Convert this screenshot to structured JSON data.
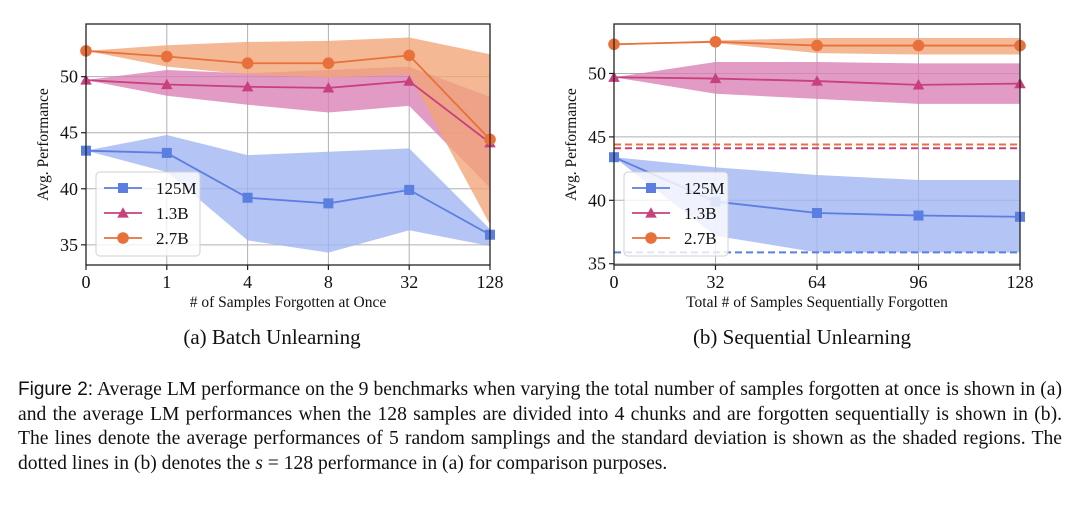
{
  "chart_data": [
    {
      "type": "line",
      "panel": "a",
      "subcaption": "(a) Batch Unlearning",
      "title": "",
      "xlabel": "# of Samples Forgotten at Once",
      "ylabel": "Avg. Performance",
      "x_ticks": [
        "0",
        "1",
        "4",
        "8",
        "32",
        "128"
      ],
      "x_scale": "categorical",
      "y_ticks": [
        35,
        40,
        45,
        50
      ],
      "ylim": [
        33.2,
        54.7
      ],
      "grid": true,
      "legend": "lower-left",
      "series": [
        {
          "name": "125M",
          "marker": "square",
          "color": "#5b7fe0",
          "fill": "#9fb3f1",
          "values": [
            43.4,
            43.2,
            39.2,
            38.7,
            39.9,
            35.9
          ],
          "upper": [
            43.4,
            44.8,
            43.0,
            43.3,
            43.6,
            36.4
          ],
          "lower": [
            43.4,
            41.5,
            35.4,
            34.3,
            36.3,
            34.9
          ]
        },
        {
          "name": "1.3B",
          "marker": "triangle",
          "color": "#c8407e",
          "fill": "#d97fb3",
          "values": [
            49.7,
            49.3,
            49.1,
            49.0,
            49.6,
            44.1
          ],
          "upper": [
            49.7,
            50.6,
            50.3,
            50.6,
            50.9,
            48.2
          ],
          "lower": [
            49.7,
            48.3,
            47.5,
            46.8,
            47.4,
            40.1
          ]
        },
        {
          "name": "2.7B",
          "marker": "circle",
          "color": "#e8703a",
          "fill": "#f1a476",
          "values": [
            52.3,
            51.8,
            51.2,
            51.2,
            51.9,
            44.4
          ],
          "upper": [
            52.3,
            52.8,
            53.1,
            53.2,
            53.5,
            52.0
          ],
          "lower": [
            52.3,
            50.9,
            50.2,
            49.9,
            50.2,
            36.8
          ]
        }
      ]
    },
    {
      "type": "line",
      "panel": "b",
      "subcaption": "(b) Sequential Unlearning",
      "title": "",
      "xlabel": "Total # of Samples Sequentially Forgotten",
      "ylabel": "Avg. Performance",
      "x": [
        0,
        32,
        64,
        96,
        128
      ],
      "x_ticks": [
        "0",
        "32",
        "64",
        "96",
        "128"
      ],
      "xlim": [
        0,
        128
      ],
      "y_ticks": [
        35,
        40,
        45,
        50
      ],
      "ylim": [
        34.9,
        53.9
      ],
      "grid": true,
      "legend": "lower-left",
      "series": [
        {
          "name": "125M",
          "marker": "square",
          "color": "#5b7fe0",
          "fill": "#9fb3f1",
          "values": [
            43.4,
            39.9,
            39.0,
            38.8,
            38.7
          ],
          "upper": [
            43.4,
            42.6,
            42.0,
            41.6,
            41.6
          ],
          "lower": [
            43.4,
            37.2,
            35.9,
            35.9,
            35.9
          ]
        },
        {
          "name": "1.3B",
          "marker": "triangle",
          "color": "#c8407e",
          "fill": "#d97fb3",
          "values": [
            49.7,
            49.6,
            49.4,
            49.1,
            49.2
          ],
          "upper": [
            49.7,
            50.9,
            50.9,
            50.8,
            50.8
          ],
          "lower": [
            49.7,
            48.4,
            48.0,
            47.6,
            47.6
          ]
        },
        {
          "name": "2.7B",
          "marker": "circle",
          "color": "#e8703a",
          "fill": "#f1a476",
          "values": [
            52.3,
            52.5,
            52.2,
            52.2,
            52.2
          ],
          "upper": [
            52.3,
            52.6,
            52.8,
            52.8,
            52.8
          ],
          "lower": [
            52.3,
            52.4,
            51.6,
            51.5,
            51.5
          ]
        }
      ],
      "reference_lines": [
        {
          "name": "2.7B s=128",
          "style": "dashed",
          "color": "#e8703a",
          "value": 44.4
        },
        {
          "name": "1.3B s=128",
          "style": "dashed",
          "color": "#c8407e",
          "value": 44.1
        },
        {
          "name": "125M s=128",
          "style": "dashed",
          "color": "#5b7fe0",
          "value": 35.9
        }
      ]
    }
  ],
  "caption": {
    "label": "Figure 2:",
    "text_before_math": " Average LM performance on the 9 benchmarks when varying the total number of samples forgotten at once is shown in (a) and the average LM performances when the 128 samples are divided into 4 chunks and are forgotten sequentially is shown in (b).  The lines denote the average performances of 5 random samplings and the standard deviation is shown as the shaded regions.  The dotted lines in (b) denotes the ",
    "math": "s",
    "text_after_math": " = 128 performance in (a) for comparison purposes."
  }
}
